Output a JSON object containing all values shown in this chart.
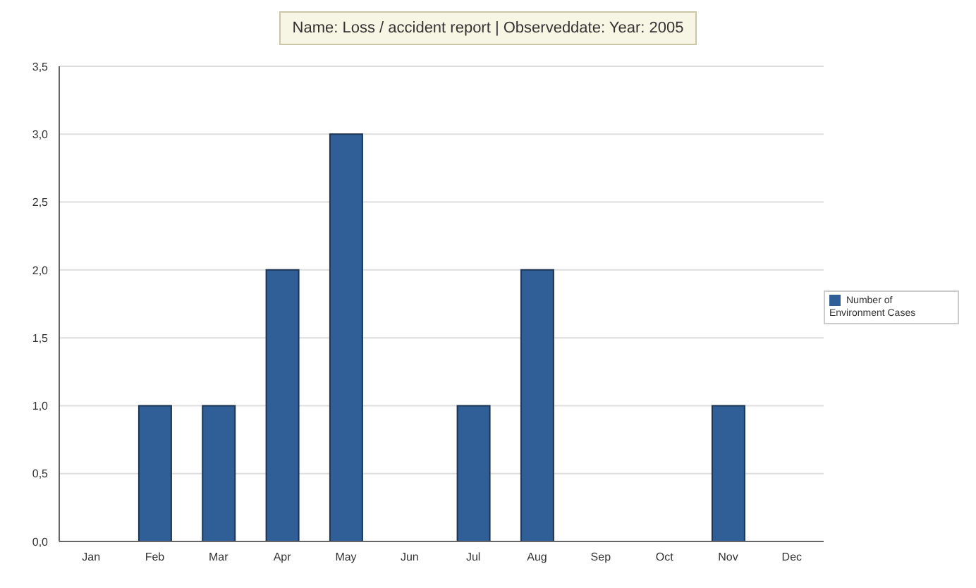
{
  "chart_data": {
    "type": "bar",
    "title": "Name: Loss / accident report | Observeddate: Year: 2005",
    "categories": [
      "Jan",
      "Feb",
      "Mar",
      "Apr",
      "May",
      "Jun",
      "Jul",
      "Aug",
      "Sep",
      "Oct",
      "Nov",
      "Dec"
    ],
    "series": [
      {
        "name": "Number of Environment Cases",
        "color": "#2f5f96",
        "values": [
          0,
          1,
          1,
          2,
          3,
          0,
          1,
          2,
          0,
          0,
          1,
          0
        ]
      }
    ],
    "ylim": [
      0,
      3.5
    ],
    "yticks": [
      {
        "value": 0,
        "label": "0,0"
      },
      {
        "value": 0.5,
        "label": "0,5"
      },
      {
        "value": 1,
        "label": "1,0"
      },
      {
        "value": 1.5,
        "label": "1,5"
      },
      {
        "value": 2,
        "label": "2,0"
      },
      {
        "value": 2.5,
        "label": "2,5"
      },
      {
        "value": 3,
        "label": "3,0"
      },
      {
        "value": 3.5,
        "label": "3,5"
      }
    ],
    "grid": "y",
    "legend": "right"
  }
}
